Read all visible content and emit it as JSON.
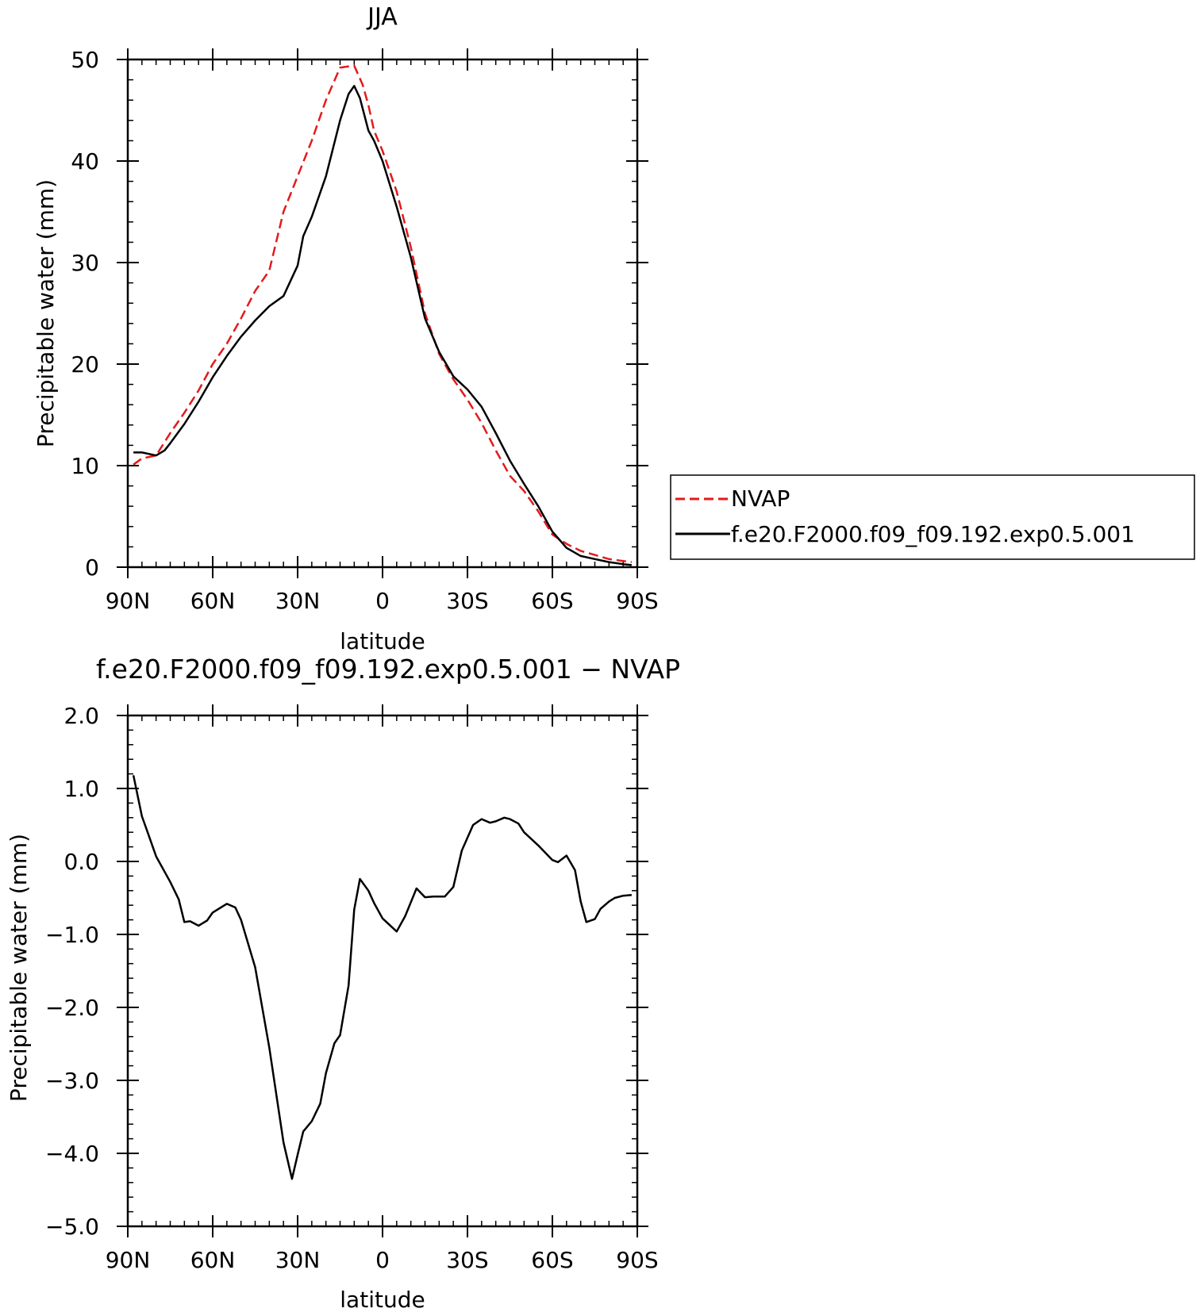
{
  "chart_data": [
    {
      "type": "line",
      "title": "JJA",
      "xlabel": "latitude",
      "ylabel": "Precipitable water  (mm)",
      "xlim": [
        90,
        -90
      ],
      "ylim": [
        0,
        50
      ],
      "xticks": [
        90,
        60,
        30,
        0,
        -30,
        -60,
        -90
      ],
      "xtick_labels": [
        "90N",
        "60N",
        "30N",
        "0",
        "30S",
        "60S",
        "90S"
      ],
      "yticks": [
        0,
        10,
        20,
        30,
        40,
        50
      ],
      "ytick_labels": [
        "0",
        "10",
        "20",
        "30",
        "40",
        "50"
      ],
      "legend_position": "right",
      "series": [
        {
          "name": "NVAP",
          "color": "#e31a1c",
          "dash": "dashed",
          "x": [
            88,
            85,
            80,
            75,
            70,
            65,
            60,
            55,
            50,
            45,
            40,
            35,
            30,
            25,
            20,
            15,
            10,
            7,
            5,
            3,
            0,
            -5,
            -10,
            -15,
            -20,
            -25,
            -30,
            -35,
            -40,
            -45,
            -50,
            -55,
            -60,
            -65,
            -70,
            -75,
            -80,
            -85,
            -88
          ],
          "y": [
            10.1,
            10.7,
            11.0,
            13.2,
            15.2,
            17.4,
            20.0,
            22.0,
            24.5,
            27.2,
            29.2,
            35.0,
            38.5,
            42.0,
            46.0,
            49.2,
            49.4,
            47.5,
            45.5,
            43.0,
            41.0,
            37.0,
            31.5,
            25.0,
            21.0,
            18.5,
            16.5,
            14.2,
            11.5,
            9.0,
            7.5,
            5.5,
            3.2,
            2.3,
            1.6,
            1.2,
            0.8,
            0.6,
            0.5
          ]
        },
        {
          "name": "f.e20.F2000.f09_f09.192.exp0.5.001",
          "color": "#000000",
          "dash": "solid",
          "x": [
            88,
            85,
            80,
            77,
            75,
            70,
            65,
            60,
            55,
            50,
            45,
            40,
            35,
            30,
            28,
            25,
            20,
            15,
            12,
            10,
            8,
            5,
            3,
            0,
            -5,
            -10,
            -15,
            -20,
            -25,
            -30,
            -35,
            -40,
            -45,
            -50,
            -55,
            -60,
            -65,
            -70,
            -75,
            -80,
            -85,
            -88
          ],
          "y": [
            11.3,
            11.3,
            11.0,
            11.5,
            12.2,
            14.1,
            16.3,
            18.7,
            20.8,
            22.7,
            24.3,
            25.7,
            26.7,
            29.7,
            32.6,
            34.5,
            38.5,
            44.0,
            46.6,
            47.4,
            46.2,
            43.0,
            42.0,
            40.0,
            35.5,
            30.5,
            24.5,
            21.2,
            18.8,
            17.5,
            15.8,
            13.2,
            10.5,
            8.2,
            6.0,
            3.5,
            1.9,
            1.1,
            0.8,
            0.5,
            0.3,
            0.2
          ]
        }
      ]
    },
    {
      "type": "line",
      "title": "f.e20.F2000.f09_f09.192.exp0.5.001  −  NVAP",
      "xlabel": "latitude",
      "ylabel": "Precipitable water  (mm)",
      "xlim": [
        90,
        -90
      ],
      "ylim": [
        -5.0,
        2.0
      ],
      "xticks": [
        90,
        60,
        30,
        0,
        -30,
        -60,
        -90
      ],
      "xtick_labels": [
        "90N",
        "60N",
        "30N",
        "0",
        "30S",
        "60S",
        "90S"
      ],
      "yticks": [
        2.0,
        1.0,
        0.0,
        -1.0,
        -2.0,
        -3.0,
        -4.0,
        -5.0
      ],
      "ytick_labels": [
        "2.0",
        "1.0",
        "0.0",
        "−1.0",
        "−2.0",
        "−3.0",
        "−4.0",
        "−5.0"
      ],
      "series": [
        {
          "color": "#000000",
          "x": [
            88,
            85,
            83,
            80,
            75,
            72,
            70,
            68,
            65,
            62,
            60,
            55,
            52,
            50,
            45,
            40,
            35,
            32,
            30,
            28,
            25,
            22,
            20,
            17,
            15,
            12,
            10,
            8,
            5,
            3,
            0,
            -5,
            -8,
            -12,
            -15,
            -18,
            -22,
            -25,
            -28,
            -32,
            -35,
            -38,
            -40,
            -43,
            -45,
            -48,
            -50,
            -55,
            -60,
            -62,
            -65,
            -68,
            -70,
            -72,
            -75,
            -77,
            -80,
            -82,
            -85,
            -88
          ],
          "y": [
            1.18,
            0.62,
            0.4,
            0.07,
            -0.28,
            -0.52,
            -0.83,
            -0.82,
            -0.88,
            -0.81,
            -0.7,
            -0.58,
            -0.63,
            -0.8,
            -1.45,
            -2.55,
            -3.85,
            -4.35,
            -4.02,
            -3.7,
            -3.56,
            -3.32,
            -2.9,
            -2.49,
            -2.38,
            -1.7,
            -0.66,
            -0.24,
            -0.4,
            -0.57,
            -0.78,
            -0.96,
            -0.75,
            -0.37,
            -0.49,
            -0.48,
            -0.48,
            -0.35,
            0.15,
            0.5,
            0.58,
            0.53,
            0.55,
            0.6,
            0.58,
            0.52,
            0.4,
            0.22,
            0.02,
            -0.01,
            0.08,
            -0.12,
            -0.55,
            -0.83,
            -0.79,
            -0.65,
            -0.55,
            -0.5,
            -0.47,
            -0.46
          ]
        }
      ]
    }
  ],
  "legend": {
    "entries": [
      "NVAP",
      "f.e20.F2000.f09_f09.192.exp0.5.001"
    ]
  }
}
